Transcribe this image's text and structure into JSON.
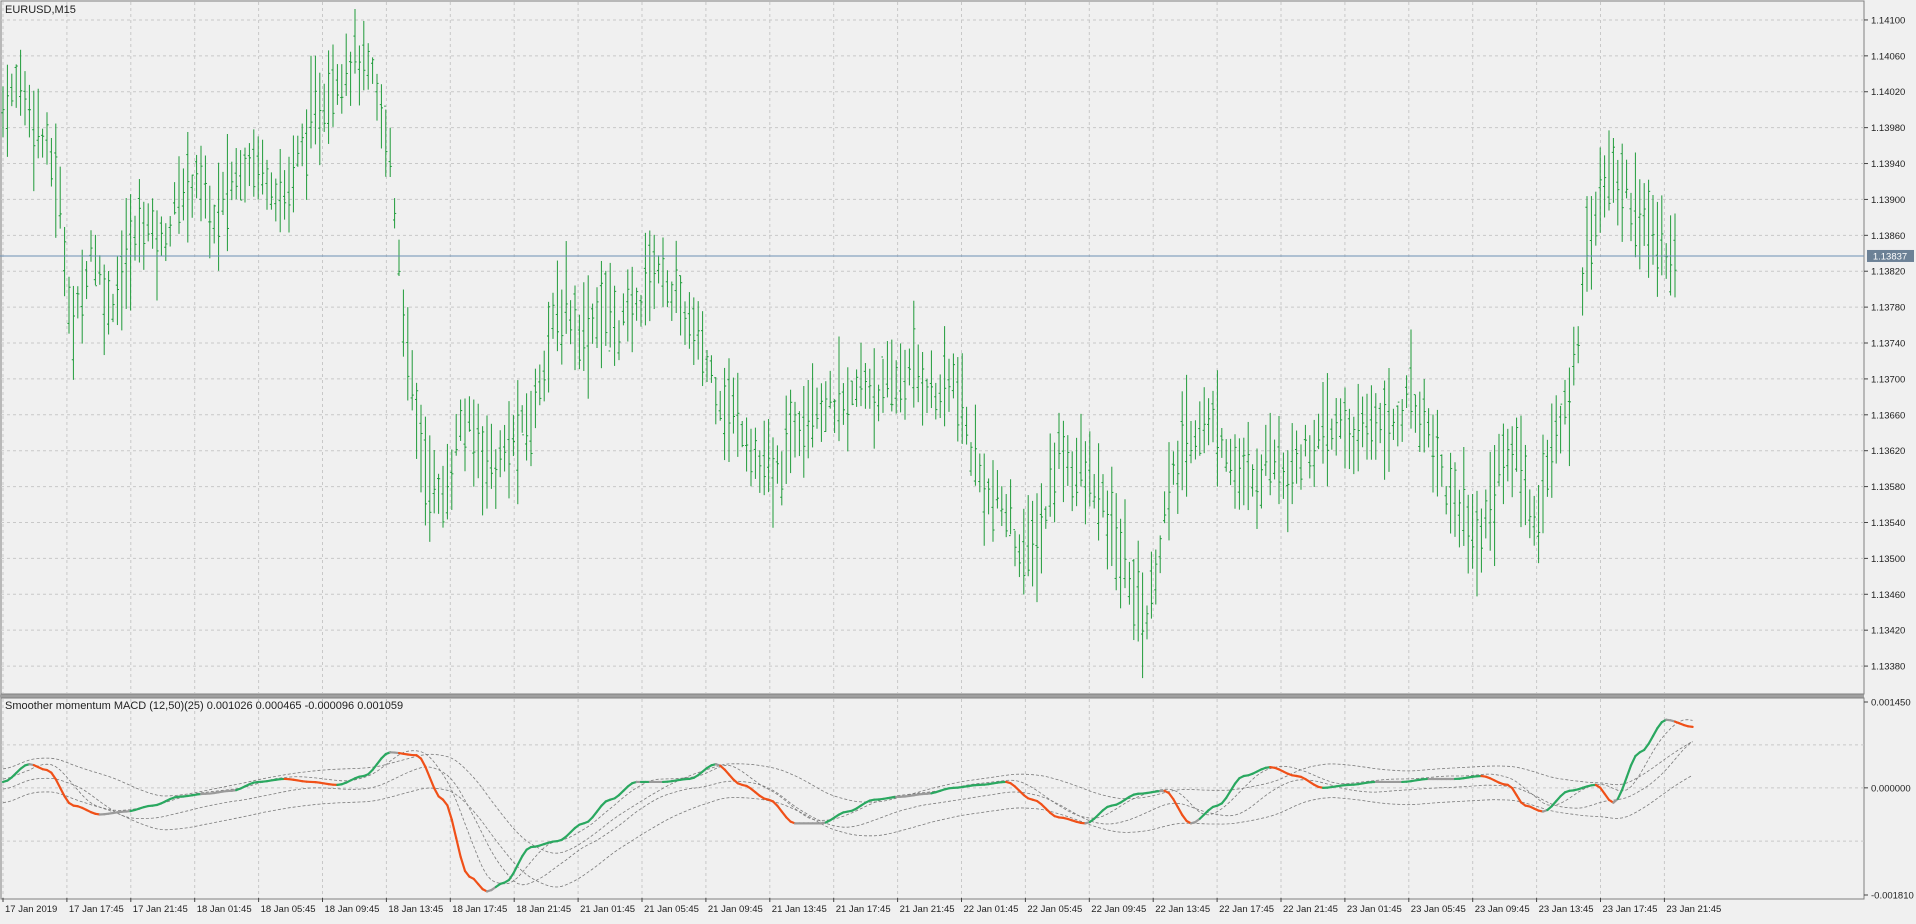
{
  "main_chart": {
    "symbol_label": "EURUSD,M15",
    "price_ticks": [
      "1.14100",
      "1.14060",
      "1.14020",
      "1.13980",
      "1.13940",
      "1.13900",
      "1.13860",
      "1.13820",
      "1.13780",
      "1.13740",
      "1.13700",
      "1.13660",
      "1.13620",
      "1.13580",
      "1.13540",
      "1.13500",
      "1.13460",
      "1.13420",
      "1.13380"
    ],
    "current_price_label": "1.13837",
    "colors": {
      "bar": "#1f9b3a",
      "bid_line": "#6d8fb5",
      "grid": "#c8c8c8",
      "background": "#f0f0f0",
      "price_tag": "#6c8196"
    }
  },
  "indicator": {
    "label": "Smoother momentum MACD (12,50)(25) 0.001026 0.000465 -0.000096 0.001059",
    "scale_ticks": [
      "0.001450",
      "0.000000",
      "-0.001810"
    ],
    "colors": {
      "up": "#2aa860",
      "down": "#f05018",
      "neutral": "#9a9a9a",
      "band": "#7a7a7a"
    }
  },
  "time_axis": {
    "labels": [
      "17 Jan 2019",
      "17 Jan 17:45",
      "17 Jan 21:45",
      "18 Jan 01:45",
      "18 Jan 05:45",
      "18 Jan 09:45",
      "18 Jan 13:45",
      "18 Jan 17:45",
      "18 Jan 21:45",
      "21 Jan 01:45",
      "21 Jan 05:45",
      "21 Jan 09:45",
      "21 Jan 13:45",
      "21 Jan 17:45",
      "21 Jan 21:45",
      "22 Jan 01:45",
      "22 Jan 05:45",
      "22 Jan 09:45",
      "22 Jan 13:45",
      "22 Jan 17:45",
      "22 Jan 21:45",
      "23 Jan 01:45",
      "23 Jan 05:45",
      "23 Jan 09:45",
      "23 Jan 13:45",
      "23 Jan 17:45",
      "23 Jan 21:45"
    ]
  },
  "chart_data": [
    {
      "type": "ohlc",
      "ylim": [
        1.1335,
        1.1412
      ],
      "price_path": [
        [
          0,
          1.14
        ],
        [
          4,
          1.1403
        ],
        [
          8,
          1.1398
        ],
        [
          12,
          1.1393
        ],
        [
          16,
          1.1375
        ],
        [
          20,
          1.1385
        ],
        [
          24,
          1.1378
        ],
        [
          28,
          1.1383
        ],
        [
          32,
          1.1388
        ],
        [
          36,
          1.1385
        ],
        [
          40,
          1.139
        ],
        [
          44,
          1.1393
        ],
        [
          48,
          1.1387
        ],
        [
          52,
          1.1392
        ],
        [
          56,
          1.1395
        ],
        [
          60,
          1.1393
        ],
        [
          64,
          1.139
        ],
        [
          68,
          1.1396
        ],
        [
          72,
          1.14
        ],
        [
          76,
          1.1404
        ],
        [
          80,
          1.1406
        ],
        [
          84,
          1.1403
        ],
        [
          88,
          1.1395
        ],
        [
          92,
          1.1372
        ],
        [
          96,
          1.136
        ],
        [
          100,
          1.1356
        ],
        [
          104,
          1.1365
        ],
        [
          108,
          1.1363
        ],
        [
          112,
          1.136
        ],
        [
          116,
          1.1363
        ],
        [
          120,
          1.1365
        ],
        [
          124,
          1.1375
        ],
        [
          128,
          1.1378
        ],
        [
          132,
          1.1375
        ],
        [
          136,
          1.1378
        ],
        [
          140,
          1.1376
        ],
        [
          144,
          1.1378
        ],
        [
          148,
          1.1383
        ],
        [
          152,
          1.138
        ],
        [
          156,
          1.1376
        ],
        [
          160,
          1.1372
        ],
        [
          164,
          1.1367
        ],
        [
          168,
          1.1365
        ],
        [
          172,
          1.136
        ],
        [
          176,
          1.1359
        ],
        [
          180,
          1.1365
        ],
        [
          184,
          1.1368
        ],
        [
          188,
          1.1367
        ],
        [
          192,
          1.1367
        ],
        [
          196,
          1.137
        ],
        [
          200,
          1.1368
        ],
        [
          204,
          1.137
        ],
        [
          208,
          1.1371
        ],
        [
          212,
          1.1368
        ],
        [
          216,
          1.137
        ],
        [
          220,
          1.1362
        ],
        [
          224,
          1.1357
        ],
        [
          228,
          1.1355
        ],
        [
          232,
          1.135
        ],
        [
          236,
          1.1353
        ],
        [
          240,
          1.1362
        ],
        [
          244,
          1.136
        ],
        [
          248,
          1.1358
        ],
        [
          252,
          1.1353
        ],
        [
          256,
          1.1348
        ],
        [
          260,
          1.1343
        ],
        [
          264,
          1.1355
        ],
        [
          268,
          1.1362
        ],
        [
          272,
          1.1365
        ],
        [
          276,
          1.1365
        ],
        [
          280,
          1.136
        ],
        [
          284,
          1.1358
        ],
        [
          288,
          1.1362
        ],
        [
          292,
          1.136
        ],
        [
          296,
          1.1362
        ],
        [
          300,
          1.1363
        ],
        [
          304,
          1.1365
        ],
        [
          308,
          1.1363
        ],
        [
          312,
          1.1366
        ],
        [
          316,
          1.1365
        ],
        [
          320,
          1.1368
        ],
        [
          324,
          1.1365
        ],
        [
          328,
          1.1358
        ],
        [
          332,
          1.1355
        ],
        [
          336,
          1.1352
        ],
        [
          340,
          1.136
        ],
        [
          344,
          1.1362
        ],
        [
          348,
          1.1354
        ],
        [
          352,
          1.1362
        ],
        [
          356,
          1.1367
        ],
        [
          360,
          1.1385
        ],
        [
          364,
          1.1392
        ],
        [
          368,
          1.1392
        ],
        [
          372,
          1.1388
        ],
        [
          376,
          1.1385
        ],
        [
          380,
          1.1384
        ]
      ],
      "current_price": 1.13837
    },
    {
      "type": "line",
      "ylim": [
        -0.00181,
        0.00145
      ],
      "series": [
        {
          "values": [
            [
              0,
              0.0001
            ],
            [
              6,
              0.0004
            ],
            [
              10,
              0.0003
            ],
            [
              16,
              -0.0003
            ],
            [
              22,
              -0.00045
            ],
            [
              28,
              -0.0004
            ],
            [
              34,
              -0.0003
            ],
            [
              40,
              -0.00015
            ],
            [
              46,
              -0.0001
            ],
            [
              52,
              -5e-05
            ],
            [
              58,
              0.0001
            ],
            [
              64,
              0.00015
            ],
            [
              70,
              0.0001
            ],
            [
              76,
              5e-05
            ],
            [
              82,
              0.0002
            ],
            [
              88,
              0.0006
            ],
            [
              94,
              0.00055
            ],
            [
              100,
              -0.0002
            ],
            [
              106,
              -0.0015
            ],
            [
              110,
              -0.00175
            ],
            [
              114,
              -0.0016
            ],
            [
              120,
              -0.001
            ],
            [
              126,
              -0.0009
            ],
            [
              132,
              -0.0006
            ],
            [
              138,
              -0.0002
            ],
            [
              144,
              0.0001
            ],
            [
              150,
              0.0001
            ],
            [
              156,
              0.00015
            ],
            [
              162,
              0.0004
            ],
            [
              168,
              5e-05
            ],
            [
              174,
              -0.0002
            ],
            [
              180,
              -0.0006
            ],
            [
              186,
              -0.0006
            ],
            [
              192,
              -0.0004
            ],
            [
              198,
              -0.0002
            ],
            [
              204,
              -0.00015
            ],
            [
              210,
              -0.0001
            ],
            [
              216,
              0.0
            ],
            [
              222,
              5e-05
            ],
            [
              228,
              0.0001
            ],
            [
              234,
              -0.0002
            ],
            [
              240,
              -0.0005
            ],
            [
              246,
              -0.0006
            ],
            [
              252,
              -0.0003
            ],
            [
              258,
              -0.0001
            ],
            [
              264,
              -5e-05
            ],
            [
              270,
              -0.0006
            ],
            [
              276,
              -0.0003
            ],
            [
              282,
              0.0002
            ],
            [
              288,
              0.00035
            ],
            [
              294,
              0.0002
            ],
            [
              300,
              0.0
            ],
            [
              306,
              5e-05
            ],
            [
              312,
              0.0001
            ],
            [
              318,
              0.0001
            ],
            [
              324,
              0.00015
            ],
            [
              330,
              0.00015
            ],
            [
              336,
              0.0002
            ],
            [
              342,
              5e-05
            ],
            [
              346,
              -0.0003
            ],
            [
              350,
              -0.0004
            ],
            [
              356,
              -5e-05
            ],
            [
              362,
              5e-05
            ],
            [
              366,
              -0.00025
            ],
            [
              372,
              0.0006
            ],
            [
              378,
              0.00115
            ],
            [
              384,
              0.00103
            ]
          ]
        }
      ]
    }
  ]
}
